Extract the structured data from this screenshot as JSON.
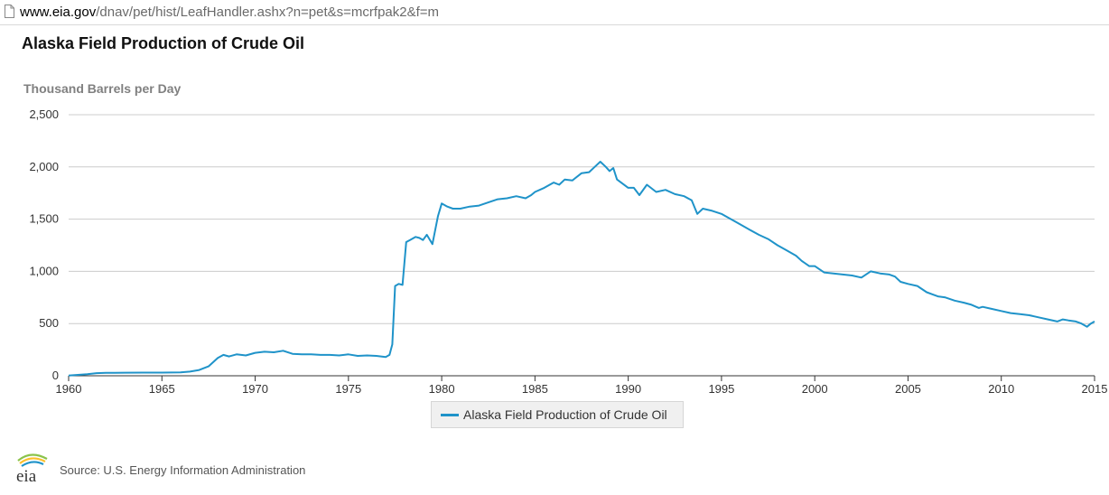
{
  "browser": {
    "url_host": "www.eia.gov",
    "url_path": "/dnav/pet/hist/LeafHandler.ashx?n=pet&s=mcrfpak2&f=m"
  },
  "footer": {
    "source": "Source: U.S. Energy Information Administration",
    "logo_text": "eia"
  },
  "colors": {
    "series": "#1f93c9",
    "grid": "#cccccc",
    "axis": "#333333"
  },
  "chart_data": {
    "type": "line",
    "title": "Alaska Field Production of Crude Oil",
    "ylabel": "Thousand Barrels per Day",
    "xlabel": "",
    "ylim": [
      0,
      2500
    ],
    "xlim": [
      1960,
      2015
    ],
    "yticks": [
      0,
      500,
      1000,
      1500,
      2000,
      2500
    ],
    "ytick_labels": [
      "0",
      "500",
      "1,000",
      "1,500",
      "2,000",
      "2,500"
    ],
    "xticks": [
      1960,
      1965,
      1970,
      1975,
      1980,
      1985,
      1990,
      1995,
      2000,
      2005,
      2010,
      2015
    ],
    "xtick_labels": [
      "1960",
      "1965",
      "1970",
      "1975",
      "1980",
      "1985",
      "1990",
      "1995",
      "2000",
      "2005",
      "2010",
      "2015"
    ],
    "grid": true,
    "legend_position": "bottom-center",
    "series": [
      {
        "name": "Alaska Field Production of Crude Oil",
        "x": [
          1960.0,
          1961.0,
          1961.5,
          1962.0,
          1963.0,
          1964.0,
          1965.0,
          1966.0,
          1966.5,
          1967.0,
          1967.5,
          1968.0,
          1968.3,
          1968.6,
          1969.0,
          1969.5,
          1970.0,
          1970.5,
          1971.0,
          1971.5,
          1972.0,
          1972.5,
          1973.0,
          1973.5,
          1974.0,
          1974.5,
          1975.0,
          1975.5,
          1976.0,
          1976.5,
          1977.0,
          1977.2,
          1977.35,
          1977.5,
          1977.7,
          1977.9,
          1978.1,
          1978.3,
          1978.6,
          1978.8,
          1979.0,
          1979.2,
          1979.5,
          1979.8,
          1980.0,
          1980.3,
          1980.6,
          1981.0,
          1981.5,
          1982.0,
          1982.5,
          1983.0,
          1983.5,
          1984.0,
          1984.5,
          1984.8,
          1985.0,
          1985.5,
          1986.0,
          1986.3,
          1986.6,
          1987.0,
          1987.5,
          1987.9,
          1988.2,
          1988.5,
          1988.8,
          1989.0,
          1989.2,
          1989.4,
          1989.7,
          1990.0,
          1990.3,
          1990.6,
          1991.0,
          1991.5,
          1992.0,
          1992.5,
          1993.0,
          1993.4,
          1993.7,
          1994.0,
          1994.5,
          1995.0,
          1995.3,
          1995.7,
          1996.0,
          1996.5,
          1997.0,
          1997.5,
          1998.0,
          1998.5,
          1999.0,
          1999.3,
          1999.7,
          2000.0,
          2000.5,
          2001.0,
          2001.5,
          2002.0,
          2002.5,
          2003.0,
          2003.5,
          2004.0,
          2004.3,
          2004.6,
          2005.0,
          2005.5,
          2006.0,
          2006.3,
          2006.6,
          2007.0,
          2007.5,
          2008.0,
          2008.4,
          2008.8,
          2009.0,
          2009.5,
          2010.0,
          2010.5,
          2011.0,
          2011.5,
          2012.0,
          2012.5,
          2013.0,
          2013.3,
          2013.6,
          2014.0,
          2014.3,
          2014.6,
          2014.8,
          2015.0
        ],
        "values": [
          2,
          15,
          25,
          28,
          29,
          30,
          30,
          32,
          40,
          55,
          90,
          170,
          200,
          185,
          205,
          195,
          220,
          230,
          225,
          240,
          210,
          205,
          205,
          200,
          200,
          195,
          205,
          190,
          195,
          190,
          180,
          200,
          300,
          860,
          880,
          870,
          1280,
          1300,
          1330,
          1320,
          1300,
          1350,
          1260,
          1530,
          1650,
          1620,
          1600,
          1600,
          1620,
          1630,
          1660,
          1690,
          1700,
          1720,
          1700,
          1730,
          1760,
          1800,
          1850,
          1830,
          1880,
          1870,
          1940,
          1950,
          2000,
          2050,
          2000,
          1960,
          1990,
          1880,
          1840,
          1800,
          1800,
          1730,
          1830,
          1760,
          1780,
          1740,
          1720,
          1680,
          1550,
          1600,
          1580,
          1550,
          1520,
          1480,
          1450,
          1400,
          1350,
          1310,
          1250,
          1200,
          1150,
          1100,
          1050,
          1050,
          990,
          980,
          970,
          960,
          940,
          1000,
          980,
          970,
          950,
          900,
          880,
          860,
          800,
          780,
          760,
          750,
          720,
          700,
          680,
          650,
          660,
          640,
          620,
          600,
          590,
          580,
          560,
          540,
          520,
          540,
          530,
          520,
          500,
          470,
          500,
          520
        ]
      }
    ]
  }
}
